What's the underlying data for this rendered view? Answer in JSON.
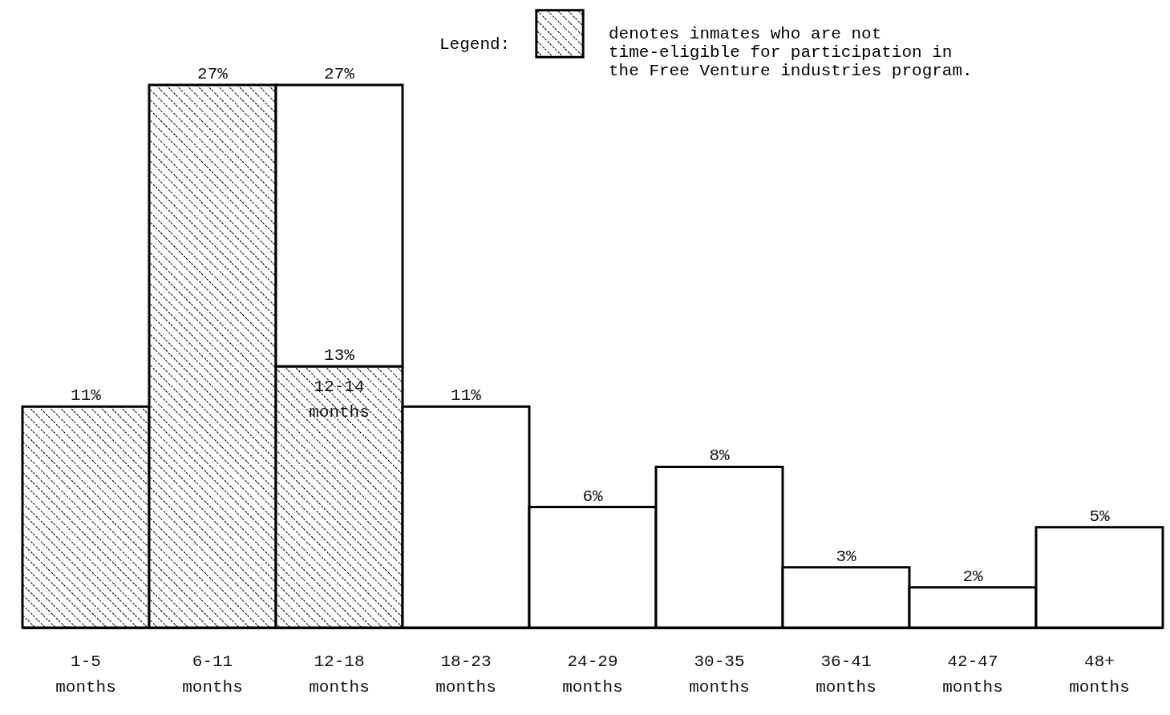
{
  "chart_data": {
    "type": "bar",
    "stacked": true,
    "legend_title": "Legend:",
    "legend": "top right",
    "categories": [
      "1-5 months",
      "6-11 months",
      "12-18 months",
      "18-23 months",
      "24-29 months",
      "30-35 months",
      "36-41 months",
      "42-47 months",
      "48+ months"
    ],
    "series": [
      {
        "name": "denotes inmates who are not time-eligible for participation in the Free Venture industries program.",
        "color": "#000000",
        "values": [
          11,
          27,
          13,
          null,
          null,
          null,
          null,
          null,
          null
        ],
        "value_labels": [
          "11%",
          "27%",
          "13%",
          null,
          null,
          null,
          null,
          null,
          null
        ]
      },
      {
        "color": "#ffffff",
        "values": [
          null,
          null,
          14,
          11,
          6,
          8,
          3,
          2,
          5
        ],
        "value_labels": [
          null,
          null,
          null,
          "11%",
          "6%",
          "8%",
          "3%",
          "2%",
          "5%"
        ]
      }
    ],
    "totals": [
      null,
      null,
      "27%",
      null,
      null,
      null,
      null,
      null,
      null
    ],
    "annotations": [
      {
        "text": "12-14 months",
        "x": "12-18 months",
        "y": 13
      }
    ]
  }
}
